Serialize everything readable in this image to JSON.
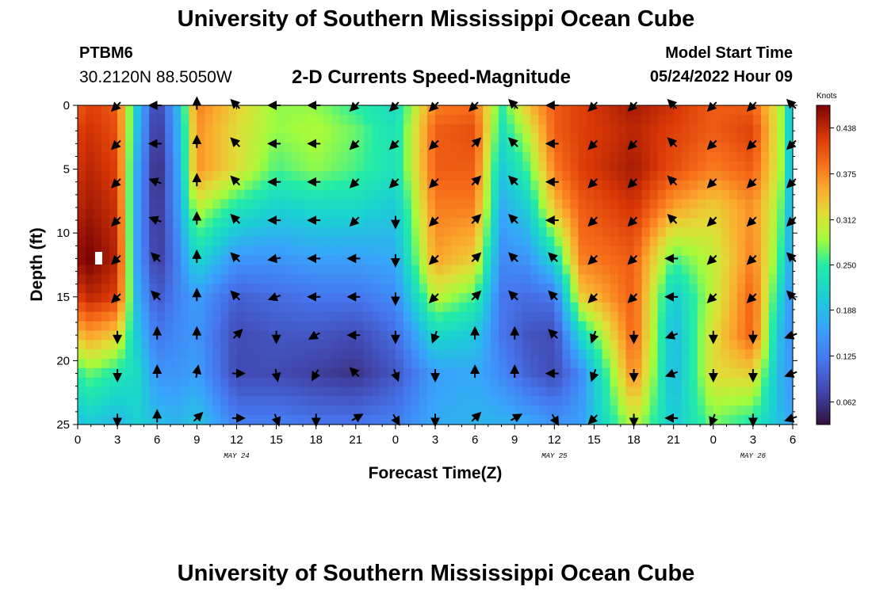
{
  "header": {
    "title": "University of Southern Mississippi Ocean Cube",
    "station": "PTBM6",
    "coords": "30.2120N  88.5050W",
    "subtitle": "2-D Currents Speed-Magnitude",
    "start_label": "Model Start Time",
    "start_time": "05/24/2022 Hour 09"
  },
  "footer": {
    "title": "University of Southern Mississippi Ocean Cube"
  },
  "chart_data": {
    "type": "heatmap",
    "title": "2-D Currents Speed-Magnitude",
    "xlabel": "Forecast Time(Z)",
    "ylabel": "Depth (ft)",
    "x_hours": [
      0,
      54
    ],
    "ylim": [
      0,
      25
    ],
    "x_tick_labels": [
      "0",
      "3",
      "6",
      "9",
      "12",
      "15",
      "18",
      "21",
      "0",
      "3",
      "6",
      "9",
      "12",
      "15",
      "18",
      "21",
      "0",
      "3",
      "6"
    ],
    "y_tick_labels": [
      "0",
      "5",
      "10",
      "15",
      "20",
      "25"
    ],
    "y_tick_values": [
      0,
      5,
      10,
      15,
      20,
      25
    ],
    "date_labels": [
      {
        "text": "MAY 24",
        "hour": 12
      },
      {
        "text": "MAY 25",
        "hour": 36
      },
      {
        "text": "MAY 26",
        "hour": 51
      }
    ],
    "colorbar": {
      "unit": "Knots",
      "min": 0.031,
      "max": 0.469,
      "tick_labels": [
        "0.438",
        "0.375",
        "0.312",
        "0.250",
        "0.188",
        "0.125",
        "0.062"
      ],
      "tick_values": [
        0.438,
        0.375,
        0.312,
        0.25,
        0.188,
        0.125,
        0.062
      ]
    },
    "speed_keyframes": [
      {
        "hour": 0,
        "depth": [
          0,
          2,
          5,
          8,
          12,
          15,
          18,
          21,
          25
        ],
        "speed": [
          0.4,
          0.42,
          0.43,
          0.44,
          0.46,
          0.42,
          0.34,
          0.25,
          0.19
        ]
      },
      {
        "hour": 1,
        "depth": [
          0,
          2,
          5,
          8,
          12,
          15,
          18,
          21,
          25
        ],
        "speed": [
          0.42,
          0.43,
          0.44,
          0.45,
          0.47,
          0.44,
          0.36,
          0.27,
          0.2
        ]
      },
      {
        "hour": 3,
        "depth": [
          0,
          2,
          5,
          8,
          12,
          15,
          18,
          21,
          25
        ],
        "speed": [
          0.4,
          0.41,
          0.42,
          0.43,
          0.44,
          0.42,
          0.33,
          0.24,
          0.18
        ]
      },
      {
        "hour": 4.5,
        "depth": [
          0,
          2,
          5,
          8,
          12,
          15,
          18,
          21,
          25
        ],
        "speed": [
          0.2,
          0.19,
          0.17,
          0.16,
          0.16,
          0.18,
          0.2,
          0.22,
          0.21
        ]
      },
      {
        "hour": 6,
        "depth": [
          0,
          2,
          5,
          8,
          12,
          15,
          18,
          21,
          25
        ],
        "speed": [
          0.06,
          0.05,
          0.04,
          0.05,
          0.06,
          0.09,
          0.12,
          0.15,
          0.19
        ]
      },
      {
        "hour": 7.5,
        "depth": [
          0,
          2,
          5,
          8,
          12,
          15,
          18,
          21,
          25
        ],
        "speed": [
          0.18,
          0.17,
          0.16,
          0.15,
          0.13,
          0.13,
          0.14,
          0.15,
          0.18
        ]
      },
      {
        "hour": 9,
        "depth": [
          0,
          2,
          5,
          8,
          12,
          15,
          18,
          21,
          25
        ],
        "speed": [
          0.38,
          0.37,
          0.37,
          0.3,
          0.22,
          0.16,
          0.15,
          0.16,
          0.2
        ]
      },
      {
        "hour": 12,
        "depth": [
          0,
          2,
          5,
          8,
          12,
          15,
          18,
          21,
          25
        ],
        "speed": [
          0.33,
          0.32,
          0.32,
          0.24,
          0.15,
          0.1,
          0.08,
          0.08,
          0.13
        ]
      },
      {
        "hour": 15,
        "depth": [
          0,
          2,
          5,
          8,
          12,
          15,
          18,
          21,
          25
        ],
        "speed": [
          0.28,
          0.28,
          0.26,
          0.21,
          0.15,
          0.11,
          0.09,
          0.08,
          0.13
        ]
      },
      {
        "hour": 18,
        "depth": [
          0,
          2,
          5,
          8,
          12,
          15,
          18,
          21,
          25
        ],
        "speed": [
          0.28,
          0.29,
          0.28,
          0.22,
          0.16,
          0.12,
          0.09,
          0.07,
          0.12
        ]
      },
      {
        "hour": 21,
        "depth": [
          0,
          2,
          5,
          8,
          12,
          15,
          18,
          21,
          25
        ],
        "speed": [
          0.25,
          0.27,
          0.26,
          0.22,
          0.16,
          0.12,
          0.08,
          0.06,
          0.12
        ]
      },
      {
        "hour": 24,
        "depth": [
          0,
          2,
          5,
          8,
          12,
          15,
          18,
          21,
          25
        ],
        "speed": [
          0.22,
          0.23,
          0.23,
          0.2,
          0.17,
          0.14,
          0.11,
          0.09,
          0.13
        ]
      },
      {
        "hour": 27,
        "depth": [
          0,
          2,
          5,
          8,
          12,
          15,
          18,
          21,
          25
        ],
        "speed": [
          0.38,
          0.4,
          0.4,
          0.38,
          0.36,
          0.3,
          0.22,
          0.16,
          0.17
        ]
      },
      {
        "hour": 30,
        "depth": [
          0,
          2,
          5,
          8,
          12,
          15,
          18,
          21,
          25
        ],
        "speed": [
          0.39,
          0.41,
          0.4,
          0.38,
          0.33,
          0.26,
          0.2,
          0.17,
          0.18
        ]
      },
      {
        "hour": 32,
        "depth": [
          0,
          2,
          5,
          8,
          12,
          15,
          18,
          21,
          25
        ],
        "speed": [
          0.25,
          0.23,
          0.2,
          0.17,
          0.14,
          0.12,
          0.12,
          0.14,
          0.18
        ]
      },
      {
        "hour": 34,
        "depth": [
          0,
          2,
          5,
          8,
          12,
          15,
          18,
          21,
          25
        ],
        "speed": [
          0.34,
          0.3,
          0.26,
          0.21,
          0.15,
          0.11,
          0.09,
          0.1,
          0.17
        ]
      },
      {
        "hour": 36,
        "depth": [
          0,
          2,
          5,
          8,
          12,
          15,
          18,
          21,
          25
        ],
        "speed": [
          0.4,
          0.4,
          0.38,
          0.34,
          0.22,
          0.12,
          0.08,
          0.08,
          0.15
        ]
      },
      {
        "hour": 38,
        "depth": [
          0,
          2,
          5,
          8,
          12,
          15,
          18,
          21,
          25
        ],
        "speed": [
          0.42,
          0.42,
          0.42,
          0.4,
          0.38,
          0.33,
          0.22,
          0.14,
          0.16
        ]
      },
      {
        "hour": 42,
        "depth": [
          0,
          2,
          5,
          8,
          12,
          15,
          18,
          21,
          25
        ],
        "speed": [
          0.45,
          0.44,
          0.45,
          0.43,
          0.4,
          0.4,
          0.4,
          0.38,
          0.3
        ]
      },
      {
        "hour": 45,
        "depth": [
          0,
          2,
          5,
          8,
          12,
          15,
          18,
          21,
          25
        ],
        "speed": [
          0.43,
          0.42,
          0.41,
          0.36,
          0.26,
          0.2,
          0.18,
          0.18,
          0.2
        ]
      },
      {
        "hour": 48,
        "depth": [
          0,
          2,
          5,
          8,
          12,
          15,
          18,
          21,
          25
        ],
        "speed": [
          0.4,
          0.4,
          0.38,
          0.33,
          0.3,
          0.3,
          0.32,
          0.32,
          0.27
        ]
      },
      {
        "hour": 51,
        "depth": [
          0,
          2,
          5,
          8,
          12,
          15,
          18,
          21,
          25
        ],
        "speed": [
          0.4,
          0.42,
          0.4,
          0.37,
          0.38,
          0.4,
          0.4,
          0.33,
          0.24
        ]
      },
      {
        "hour": 53,
        "depth": [
          0,
          2,
          5,
          8,
          12,
          15,
          18,
          21,
          25
        ],
        "speed": [
          0.3,
          0.3,
          0.3,
          0.28,
          0.26,
          0.22,
          0.19,
          0.18,
          0.19
        ]
      },
      {
        "hour": 54,
        "depth": [
          0,
          2,
          5,
          8,
          12,
          15,
          18,
          21,
          25
        ],
        "speed": [
          0.18,
          0.18,
          0.17,
          0.16,
          0.15,
          0.14,
          0.14,
          0.15,
          0.16
        ]
      }
    ],
    "vector_depths": [
      0,
      3,
      6,
      9,
      12,
      15,
      18,
      21,
      24.5
    ],
    "vector_hours": [
      3,
      6,
      9,
      12,
      15,
      18,
      21,
      24,
      27,
      30,
      33,
      36,
      39,
      42,
      45,
      48,
      51,
      54
    ],
    "vector_direction_deg_by_hour": [
      {
        "hour": 3,
        "deg": [
          225,
          225,
          225,
          225,
          225,
          225,
          270,
          270,
          270
        ]
      },
      {
        "hour": 6,
        "deg": [
          180,
          180,
          160,
          160,
          135,
          135,
          90,
          90,
          90
        ]
      },
      {
        "hour": 9,
        "deg": [
          90,
          90,
          90,
          90,
          90,
          90,
          90,
          80,
          45
        ]
      },
      {
        "hour": 12,
        "deg": [
          135,
          135,
          135,
          135,
          135,
          135,
          45,
          0,
          0
        ]
      },
      {
        "hour": 15,
        "deg": [
          180,
          180,
          180,
          180,
          190,
          200,
          270,
          280,
          290
        ]
      },
      {
        "hour": 18,
        "deg": [
          180,
          180,
          180,
          180,
          180,
          180,
          210,
          240,
          270
        ]
      },
      {
        "hour": 21,
        "deg": [
          225,
          225,
          225,
          225,
          180,
          180,
          180,
          135,
          30
        ]
      },
      {
        "hour": 24,
        "deg": [
          225,
          225,
          225,
          270,
          270,
          270,
          270,
          290,
          300
        ]
      },
      {
        "hour": 27,
        "deg": [
          225,
          225,
          225,
          225,
          225,
          225,
          250,
          270,
          270
        ]
      },
      {
        "hour": 30,
        "deg": [
          225,
          45,
          45,
          45,
          45,
          45,
          90,
          90,
          45
        ]
      },
      {
        "hour": 33,
        "deg": [
          135,
          135,
          135,
          135,
          135,
          135,
          90,
          90,
          30
        ]
      },
      {
        "hour": 36,
        "deg": [
          180,
          180,
          180,
          180,
          135,
          135,
          135,
          180,
          300
        ]
      },
      {
        "hour": 39,
        "deg": [
          225,
          225,
          225,
          225,
          225,
          225,
          250,
          250,
          225
        ]
      },
      {
        "hour": 42,
        "deg": [
          225,
          225,
          225,
          225,
          225,
          225,
          270,
          270,
          270
        ]
      },
      {
        "hour": 45,
        "deg": [
          135,
          135,
          135,
          135,
          180,
          180,
          200,
          200,
          180
        ]
      },
      {
        "hour": 48,
        "deg": [
          225,
          225,
          225,
          225,
          225,
          225,
          270,
          270,
          250
        ]
      },
      {
        "hour": 51,
        "deg": [
          225,
          225,
          225,
          225,
          225,
          225,
          270,
          270,
          270
        ]
      },
      {
        "hour": 54,
        "deg": [
          135,
          225,
          225,
          225,
          135,
          135,
          200,
          200,
          200
        ]
      }
    ]
  }
}
